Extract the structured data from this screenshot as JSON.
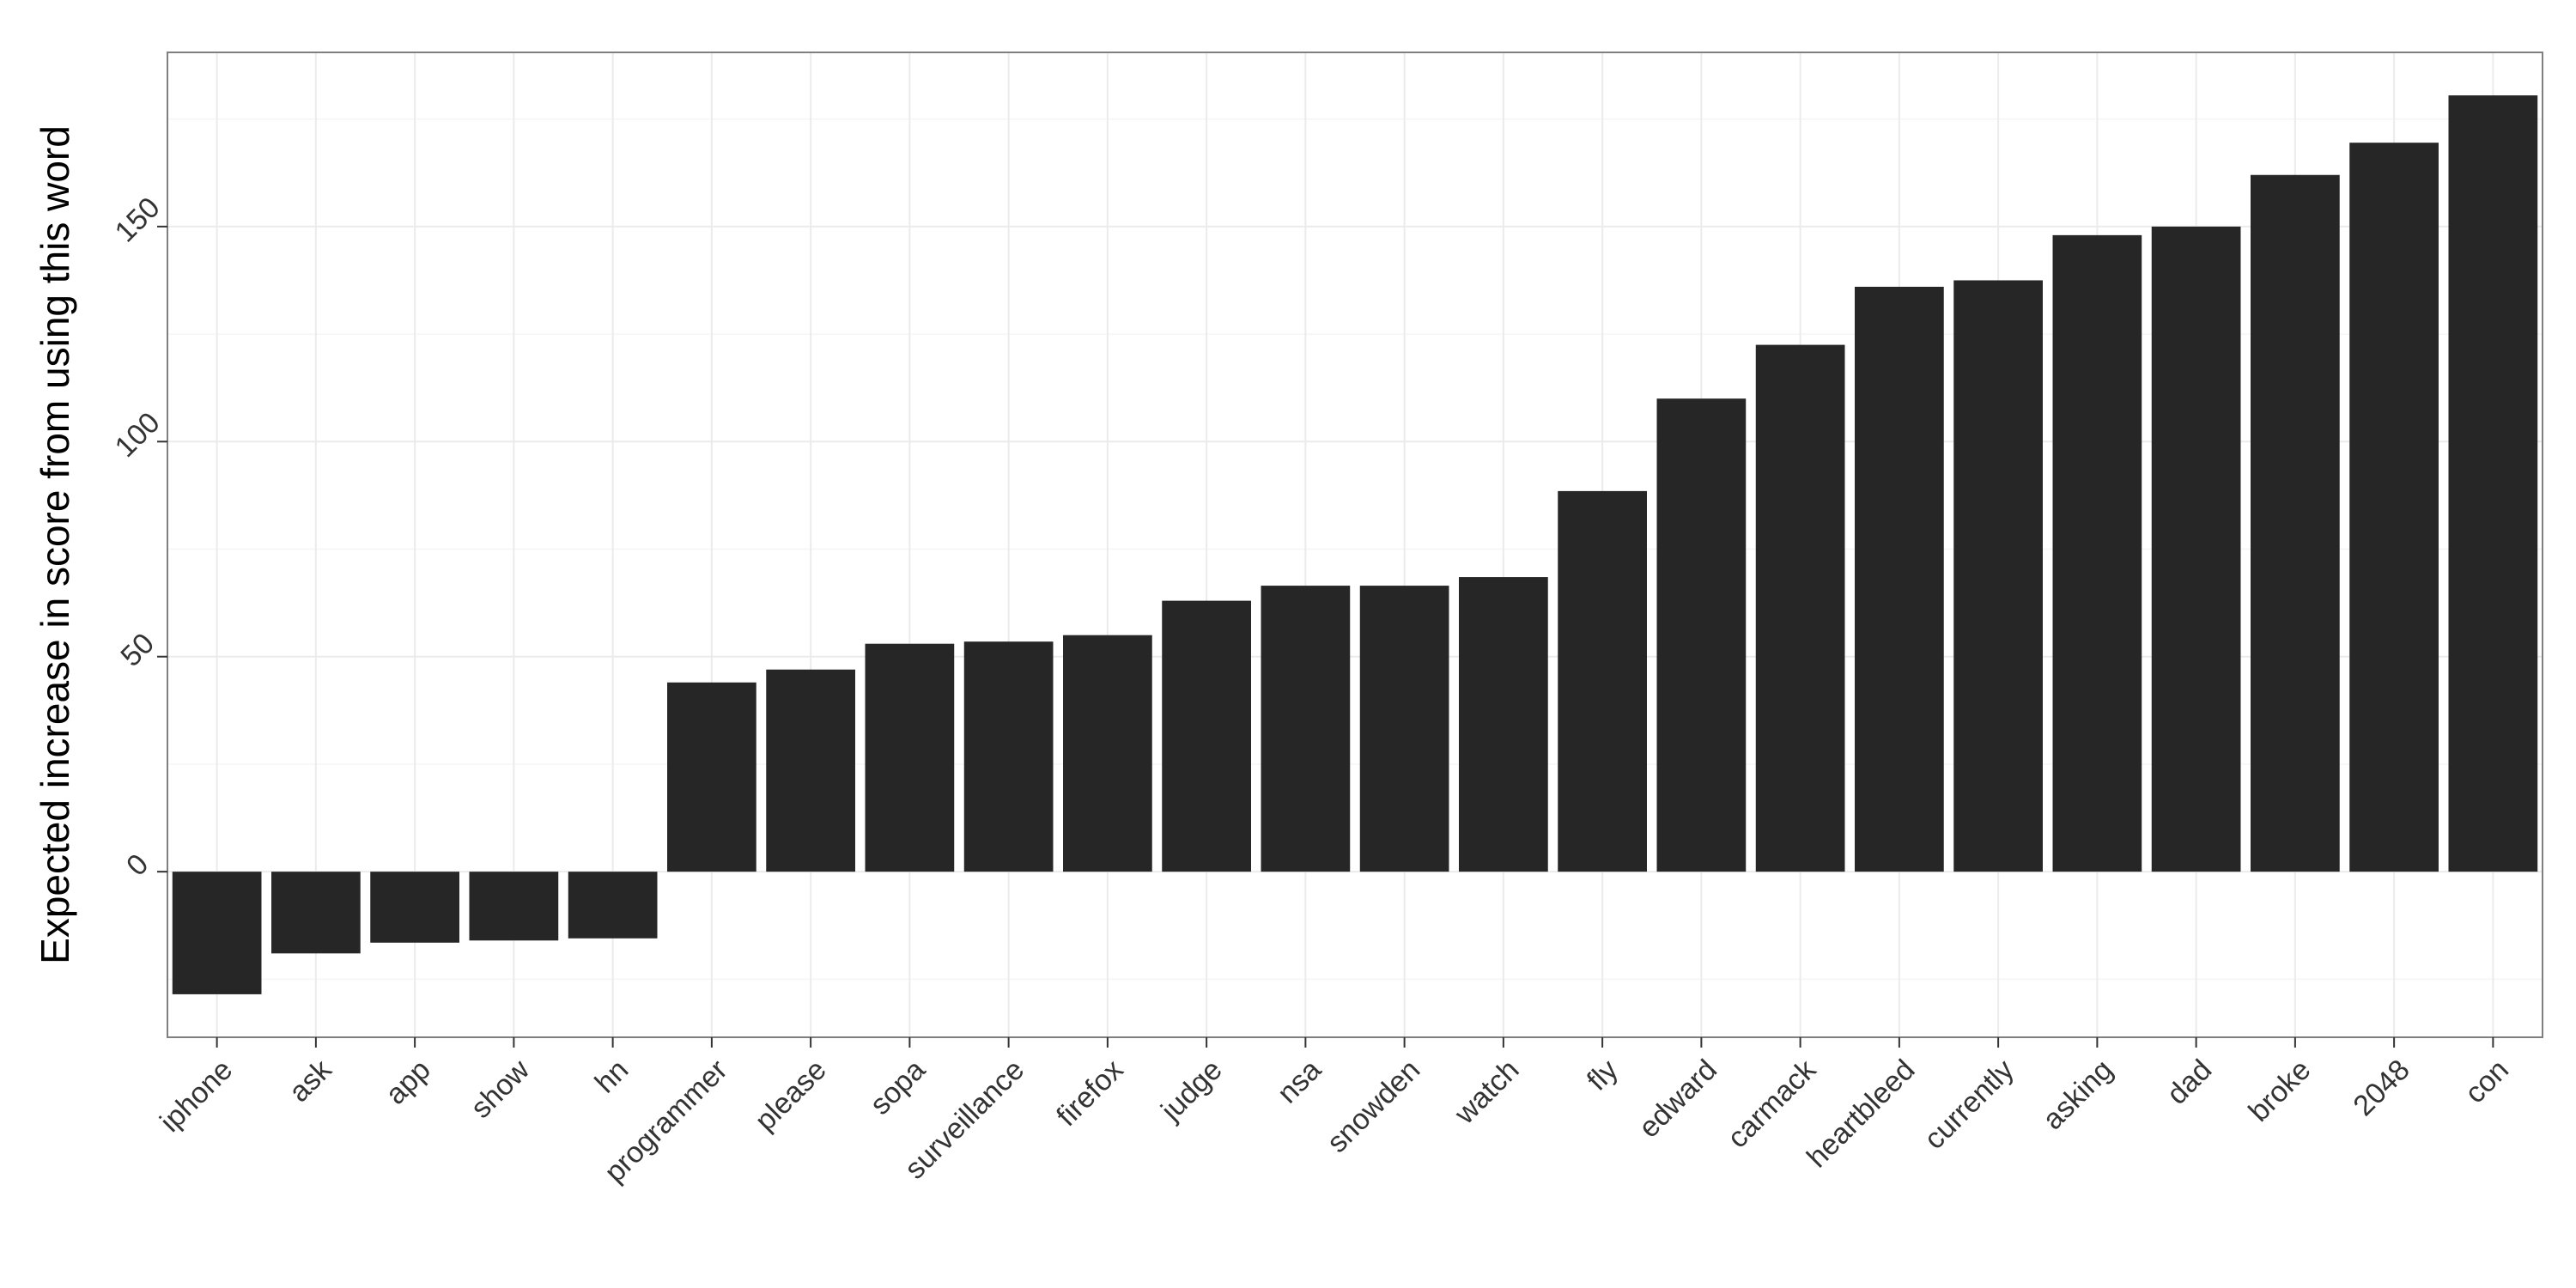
{
  "chart_data": {
    "type": "bar",
    "title": "",
    "xlabel": "",
    "ylabel": "Expected increase in score from using this word",
    "categories": [
      "iphone",
      "ask",
      "app",
      "show",
      "hn",
      "programmer",
      "please",
      "sopa",
      "surveillance",
      "firefox",
      "judge",
      "nsa",
      "snowden",
      "watch",
      "fly",
      "edward",
      "carmack",
      "heartbleed",
      "currently",
      "asking",
      "dad",
      "broke",
      "2048",
      "con"
    ],
    "values": [
      -28.5,
      -19,
      -16.5,
      -16,
      -15.5,
      44,
      47,
      53,
      53.5,
      55,
      63,
      66.5,
      66.5,
      68.5,
      88.5,
      110,
      122.5,
      136,
      137.5,
      148,
      150,
      162,
      169.5,
      180.5
    ],
    "ylim": [
      -38.5,
      190.5
    ],
    "yticks": [
      0,
      50,
      100,
      150
    ],
    "grid": true,
    "bar_color": "#262626",
    "panel_border_color": "#7f7f7f",
    "grid_major_color": "#ebebeb",
    "grid_minor_color": "#f5f5f5"
  }
}
